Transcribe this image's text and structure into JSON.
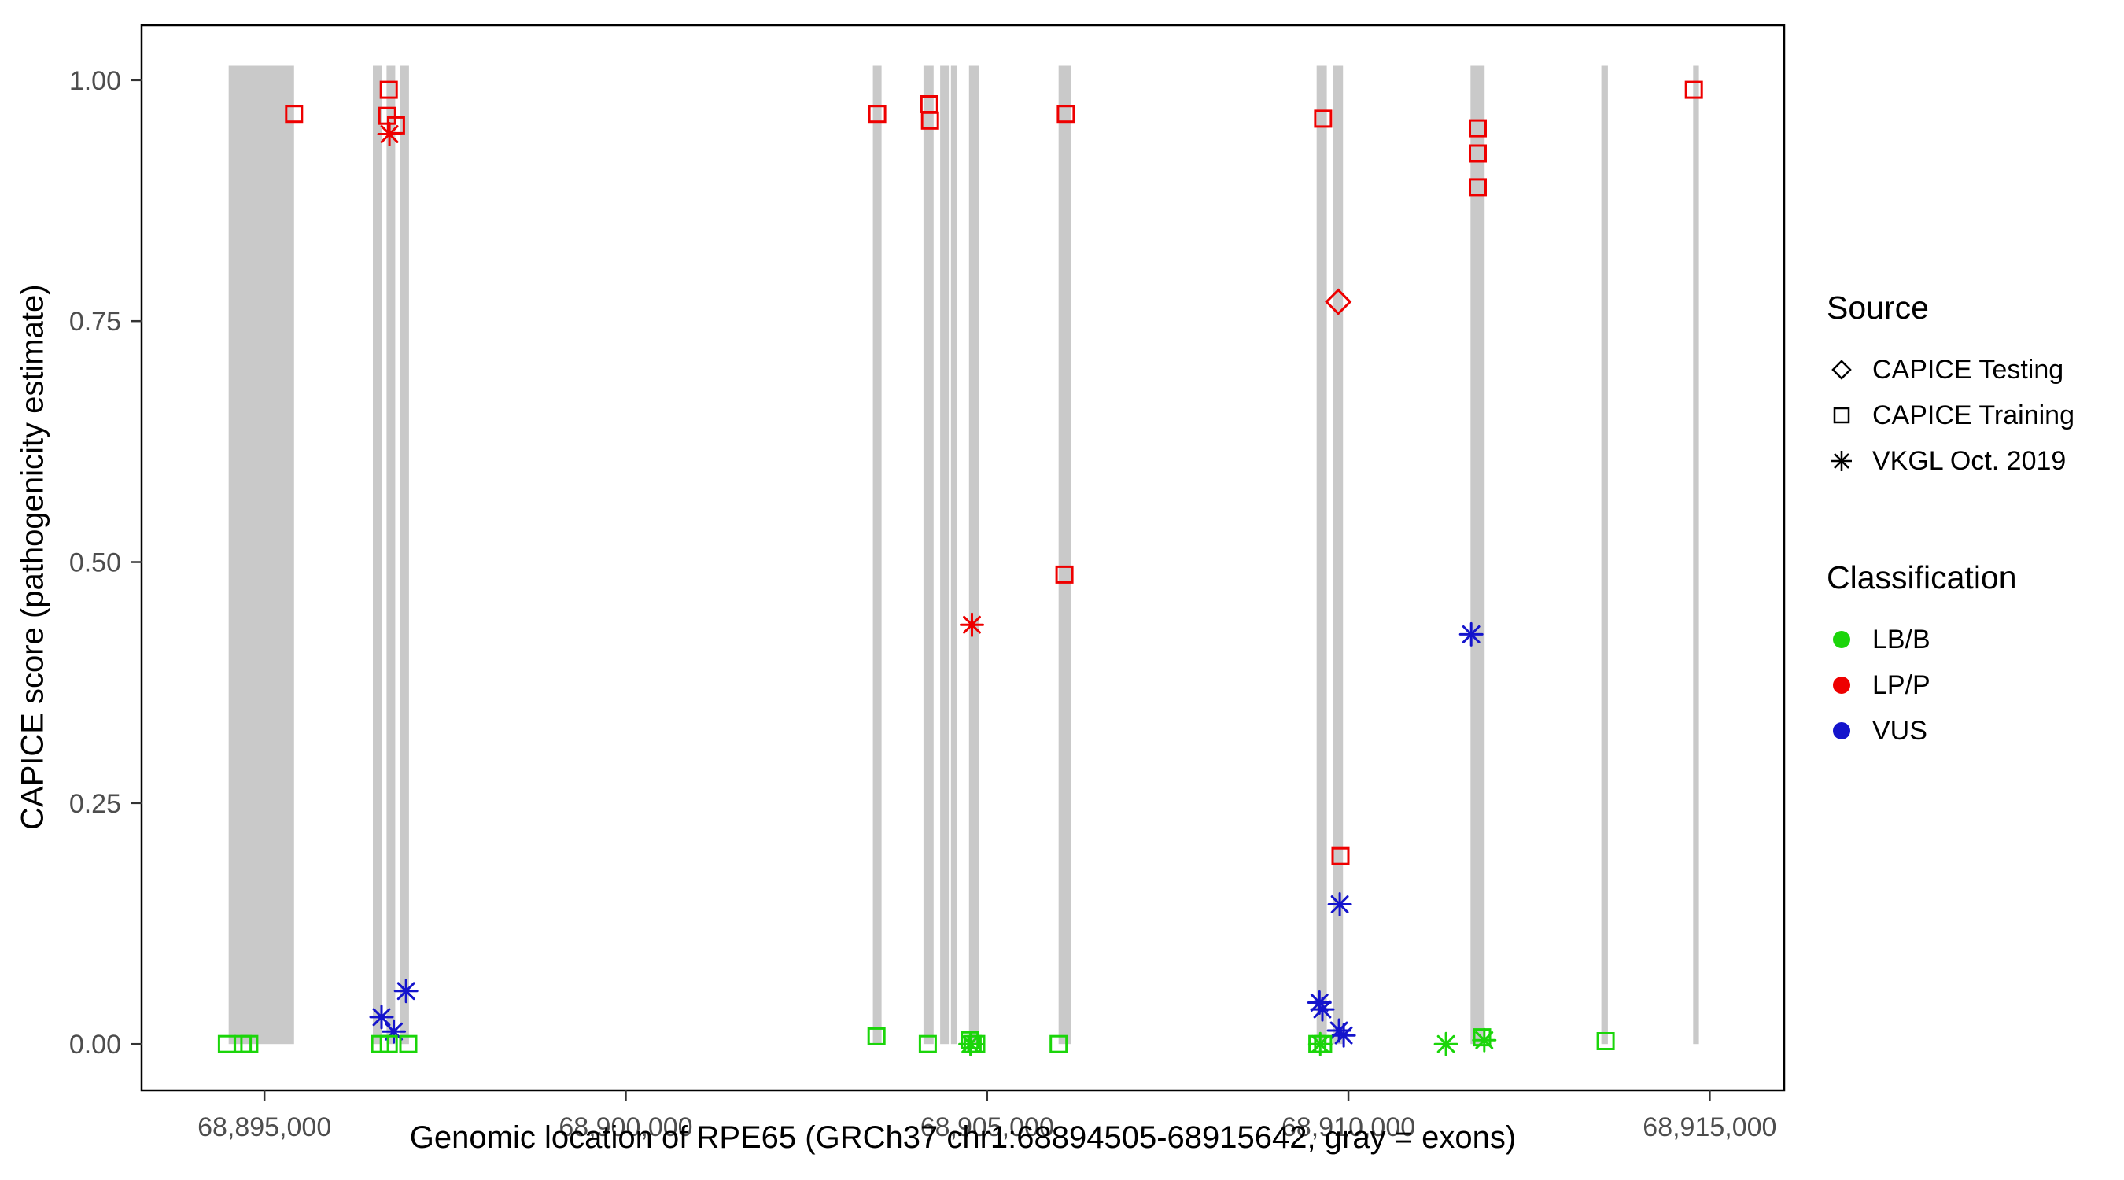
{
  "chart_data": {
    "type": "scatter",
    "title": "",
    "xlabel": "Genomic location of RPE65 (GRCh37 chr1:68894505-68915642, gray = exons)",
    "ylabel": "CAPICE score (pathogenicity estimate)",
    "x_domain": [
      68893300,
      68916030
    ],
    "y_domain": [
      -0.048,
      1.057
    ],
    "x_ticks": {
      "values": [
        68895000,
        68900000,
        68905000,
        68910000,
        68915000
      ],
      "labels": [
        "68,895,000",
        "68,900,000",
        "68,905,000",
        "68,910,000",
        "68,915,000"
      ]
    },
    "y_ticks": {
      "values": [
        0,
        0.25,
        0.5,
        0.75,
        1.0
      ],
      "labels": [
        "0.00",
        "0.25",
        "0.50",
        "0.75",
        "1.00"
      ]
    },
    "grid": false,
    "legend_position": "right",
    "exon_color": "#C9C9C9",
    "exon_y_range": [
      0,
      1.015
    ],
    "exons": [
      [
        68894505,
        68895410
      ],
      [
        68896500,
        68896620
      ],
      [
        68896690,
        68896810
      ],
      [
        68896880,
        68897000
      ],
      [
        68903420,
        68903540
      ],
      [
        68904120,
        68904260
      ],
      [
        68904350,
        68904470
      ],
      [
        68904500,
        68904580
      ],
      [
        68904750,
        68904890
      ],
      [
        68905990,
        68906160
      ],
      [
        68909560,
        68909700
      ],
      [
        68909790,
        68909925
      ],
      [
        68911690,
        68911885
      ],
      [
        68913500,
        68913590
      ],
      [
        68914770,
        68914850
      ]
    ],
    "colors": {
      "LB/B": "#1BD50A",
      "LP/P": "#EE0000",
      "VUS": "#1414CC"
    },
    "shapes": {
      "CAPICE Testing": "diamond",
      "CAPICE Training": "square",
      "VKGL Oct. 2019": "asterisk"
    },
    "points": [
      {
        "x": 68895410,
        "y": 0.965,
        "source": "CAPICE Training",
        "classification": "LP/P"
      },
      {
        "x": 68896720,
        "y": 0.99,
        "source": "CAPICE Training",
        "classification": "LP/P"
      },
      {
        "x": 68896700,
        "y": 0.963,
        "source": "CAPICE Training",
        "classification": "LP/P"
      },
      {
        "x": 68896820,
        "y": 0.953,
        "source": "CAPICE Training",
        "classification": "LP/P"
      },
      {
        "x": 68896730,
        "y": 0.944,
        "source": "VKGL Oct. 2019",
        "classification": "LP/P"
      },
      {
        "x": 68903480,
        "y": 0.965,
        "source": "CAPICE Training",
        "classification": "LP/P"
      },
      {
        "x": 68904200,
        "y": 0.975,
        "source": "CAPICE Training",
        "classification": "LP/P"
      },
      {
        "x": 68904210,
        "y": 0.958,
        "source": "CAPICE Training",
        "classification": "LP/P"
      },
      {
        "x": 68906090,
        "y": 0.965,
        "source": "CAPICE Training",
        "classification": "LP/P"
      },
      {
        "x": 68906070,
        "y": 0.487,
        "source": "CAPICE Training",
        "classification": "LP/P"
      },
      {
        "x": 68904790,
        "y": 0.435,
        "source": "VKGL Oct. 2019",
        "classification": "LP/P"
      },
      {
        "x": 68909650,
        "y": 0.96,
        "source": "CAPICE Training",
        "classification": "LP/P"
      },
      {
        "x": 68909860,
        "y": 0.77,
        "source": "CAPICE Testing",
        "classification": "LP/P"
      },
      {
        "x": 68909890,
        "y": 0.195,
        "source": "CAPICE Training",
        "classification": "LP/P"
      },
      {
        "x": 68911790,
        "y": 0.95,
        "source": "CAPICE Training",
        "classification": "LP/P"
      },
      {
        "x": 68911790,
        "y": 0.924,
        "source": "CAPICE Training",
        "classification": "LP/P"
      },
      {
        "x": 68911790,
        "y": 0.889,
        "source": "CAPICE Training",
        "classification": "LP/P"
      },
      {
        "x": 68914780,
        "y": 0.99,
        "source": "CAPICE Training",
        "classification": "LP/P"
      },
      {
        "x": 68896960,
        "y": 0.055,
        "source": "VKGL Oct. 2019",
        "classification": "VUS"
      },
      {
        "x": 68896620,
        "y": 0.028,
        "source": "VKGL Oct. 2019",
        "classification": "VUS"
      },
      {
        "x": 68896790,
        "y": 0.013,
        "source": "VKGL Oct. 2019",
        "classification": "VUS"
      },
      {
        "x": 68909600,
        "y": 0.043,
        "source": "VKGL Oct. 2019",
        "classification": "VUS"
      },
      {
        "x": 68909640,
        "y": 0.036,
        "source": "VKGL Oct. 2019",
        "classification": "VUS"
      },
      {
        "x": 68909880,
        "y": 0.145,
        "source": "VKGL Oct. 2019",
        "classification": "VUS"
      },
      {
        "x": 68909870,
        "y": 0.014,
        "source": "VKGL Oct. 2019",
        "classification": "VUS"
      },
      {
        "x": 68909935,
        "y": 0.009,
        "source": "VKGL Oct. 2019",
        "classification": "VUS"
      },
      {
        "x": 68911700,
        "y": 0.425,
        "source": "VKGL Oct. 2019",
        "classification": "VUS"
      },
      {
        "x": 68894480,
        "y": 0.0,
        "source": "CAPICE Training",
        "classification": "LB/B"
      },
      {
        "x": 68894700,
        "y": 0.0,
        "source": "CAPICE Training",
        "classification": "LB/B"
      },
      {
        "x": 68894790,
        "y": 0.0,
        "source": "CAPICE Training",
        "classification": "LB/B"
      },
      {
        "x": 68896600,
        "y": 0.0,
        "source": "CAPICE Training",
        "classification": "LB/B"
      },
      {
        "x": 68896720,
        "y": 0.0,
        "source": "CAPICE Training",
        "classification": "LB/B"
      },
      {
        "x": 68896990,
        "y": 0.0,
        "source": "CAPICE Training",
        "classification": "LB/B"
      },
      {
        "x": 68903470,
        "y": 0.008,
        "source": "CAPICE Training",
        "classification": "LB/B"
      },
      {
        "x": 68904180,
        "y": 0.0,
        "source": "CAPICE Training",
        "classification": "LB/B"
      },
      {
        "x": 68904760,
        "y": 0.004,
        "source": "CAPICE Training",
        "classification": "LB/B"
      },
      {
        "x": 68904800,
        "y": 0.0,
        "source": "CAPICE Training",
        "classification": "LB/B"
      },
      {
        "x": 68904850,
        "y": 0.0,
        "source": "CAPICE Training",
        "classification": "LB/B"
      },
      {
        "x": 68904770,
        "y": 0.0,
        "source": "VKGL Oct. 2019",
        "classification": "LB/B"
      },
      {
        "x": 68905990,
        "y": 0.0,
        "source": "CAPICE Training",
        "classification": "LB/B"
      },
      {
        "x": 68909570,
        "y": 0.0,
        "source": "CAPICE Training",
        "classification": "LB/B"
      },
      {
        "x": 68909650,
        "y": 0.0,
        "source": "CAPICE Training",
        "classification": "LB/B"
      },
      {
        "x": 68909610,
        "y": 0.0,
        "source": "VKGL Oct. 2019",
        "classification": "LB/B"
      },
      {
        "x": 68911350,
        "y": 0.0,
        "source": "VKGL Oct. 2019",
        "classification": "LB/B"
      },
      {
        "x": 68911850,
        "y": 0.007,
        "source": "CAPICE Training",
        "classification": "LB/B"
      },
      {
        "x": 68911880,
        "y": 0.004,
        "source": "VKGL Oct. 2019",
        "classification": "LB/B"
      },
      {
        "x": 68913560,
        "y": 0.003,
        "source": "CAPICE Training",
        "classification": "LB/B"
      }
    ]
  },
  "axes": {
    "x_title": "Genomic location of RPE65 (GRCh37 chr1:68894505-68915642, gray = exons)",
    "y_title": "CAPICE score (pathogenicity estimate)"
  },
  "legend": {
    "source": {
      "title": "Source",
      "items": [
        {
          "label": "CAPICE Testing",
          "shape": "diamond"
        },
        {
          "label": "CAPICE Training",
          "shape": "square"
        },
        {
          "label": "VKGL Oct. 2019",
          "shape": "asterisk"
        }
      ]
    },
    "classification": {
      "title": "Classification",
      "items": [
        {
          "label": "LB/B",
          "color": "#1BD50A"
        },
        {
          "label": "LP/P",
          "color": "#EE0000"
        },
        {
          "label": "VUS",
          "color": "#1414CC"
        }
      ]
    }
  }
}
